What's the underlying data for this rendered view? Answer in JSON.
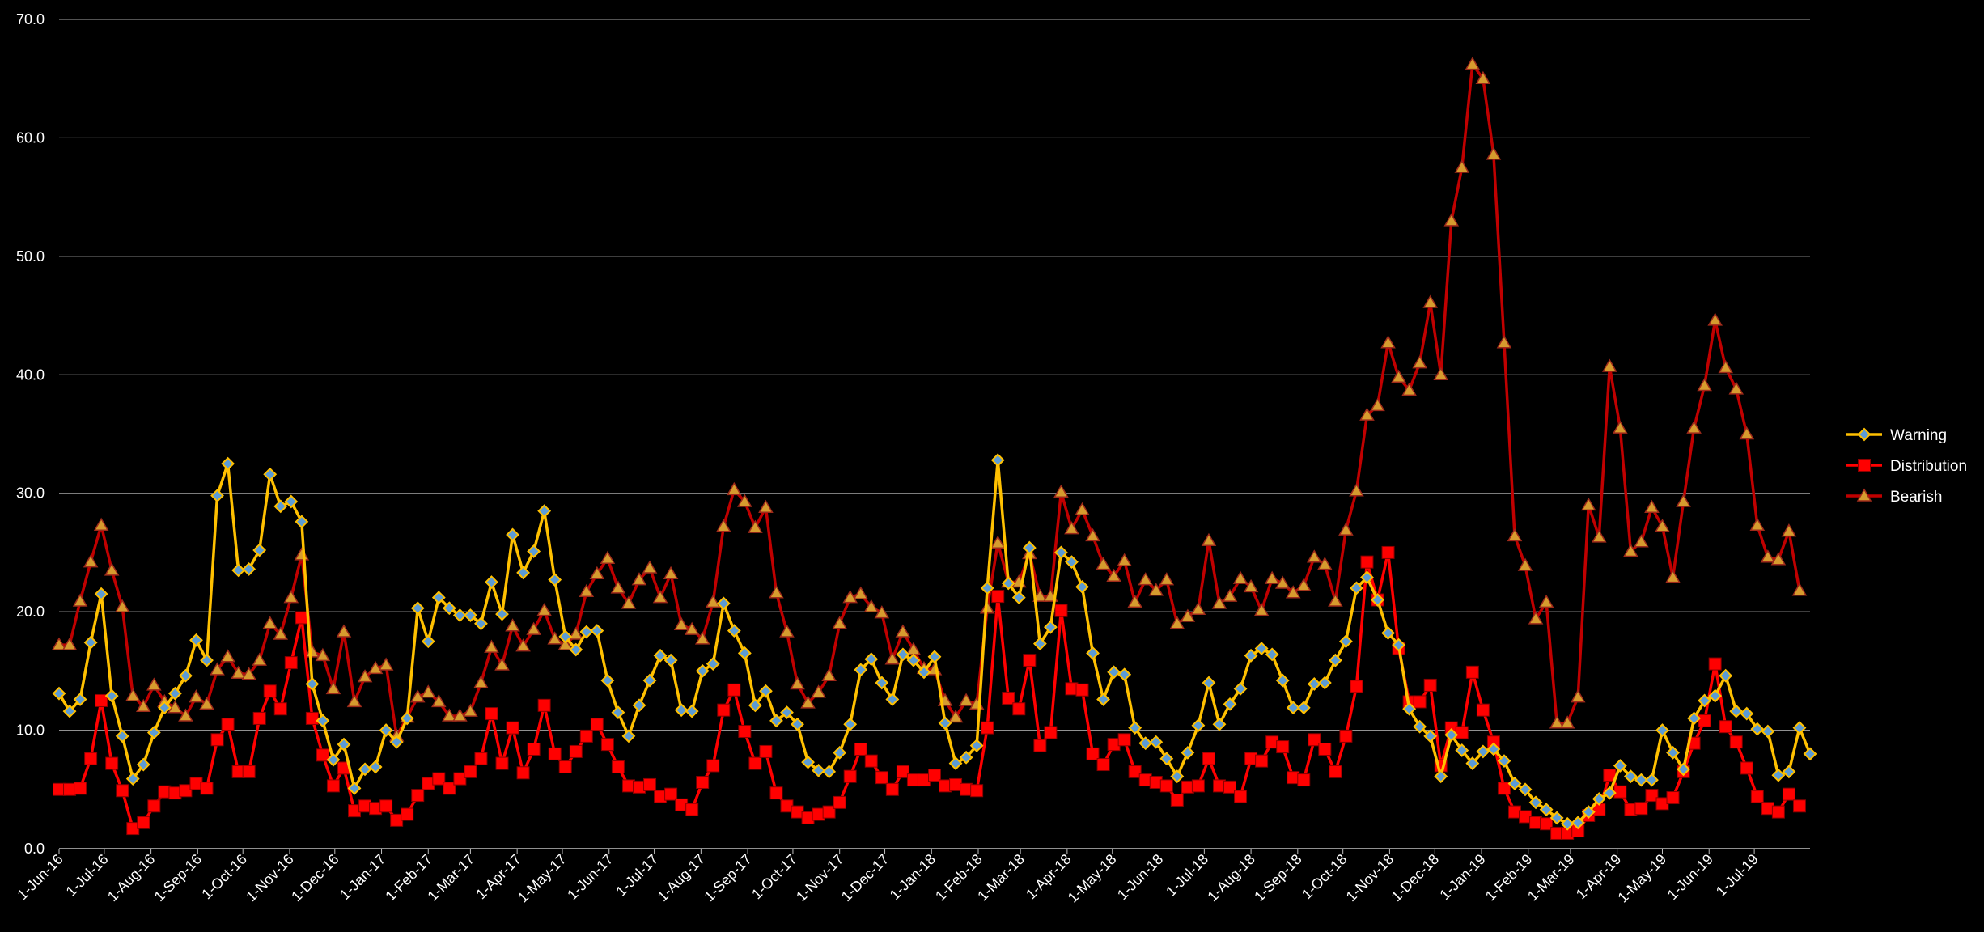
{
  "chart_data": {
    "type": "line",
    "title": "",
    "xlabel": "",
    "ylabel": "",
    "ylim": [
      0,
      70
    ],
    "y_ticks": [
      "0.0",
      "10.0",
      "20.0",
      "30.0",
      "40.0",
      "50.0",
      "60.0",
      "70.0"
    ],
    "grid": "horizontal",
    "legend_position": "right",
    "x_tick_labels": [
      "1-Jun-16",
      "1-Jul-16",
      "1-Aug-16",
      "1-Sep-16",
      "1-Oct-16",
      "1-Nov-16",
      "1-Dec-16",
      "1-Jan-17",
      "1-Feb-17",
      "1-Mar-17",
      "1-Apr-17",
      "1-May-17",
      "1-Jun-17",
      "1-Jul-17",
      "1-Aug-17",
      "1-Sep-17",
      "1-Oct-17",
      "1-Nov-17",
      "1-Dec-17",
      "1-Jan-18",
      "1-Feb-18",
      "1-Mar-18",
      "1-Apr-18",
      "1-May-18",
      "1-Jun-18",
      "1-Jul-18",
      "1-Aug-18",
      "1-Sep-18",
      "1-Oct-18",
      "1-Nov-18",
      "1-Dec-18",
      "1-Jan-19",
      "1-Feb-19",
      "1-Mar-19",
      "1-Apr-19",
      "1-May-19",
      "1-Jun-19",
      "1-Jul-19"
    ],
    "series": [
      {
        "name": "Warning",
        "color": "#FFC000",
        "marker": "diamond",
        "values": [
          13.1,
          11.6,
          12.6,
          17.4,
          21.5,
          12.9,
          9.5,
          5.9,
          7.1,
          9.8,
          11.9,
          13.1,
          14.6,
          17.6,
          15.9,
          29.8,
          32.5,
          23.5,
          23.6,
          25.2,
          31.6,
          28.9,
          29.3,
          27.6,
          13.9,
          10.8,
          7.5,
          8.8,
          5.1,
          6.7,
          6.9,
          10.0,
          9.0,
          11.0,
          20.3,
          17.5,
          21.2,
          20.3,
          19.7,
          19.7,
          19.0,
          22.5,
          19.8,
          26.5,
          23.3,
          25.1,
          28.5,
          22.7,
          17.9,
          16.8,
          18.3,
          18.4,
          14.2,
          11.5,
          9.5,
          12.1,
          14.2,
          16.3,
          15.9,
          11.7,
          11.6,
          15.0,
          15.6,
          20.7,
          18.4,
          16.5,
          12.1,
          13.3,
          10.8,
          11.5,
          10.5,
          7.3,
          6.6,
          6.5,
          8.1,
          10.5,
          15.1,
          16.0,
          14.0,
          12.6,
          16.4,
          15.9,
          14.9,
          16.2,
          10.6,
          7.2,
          7.7,
          8.7,
          22.0,
          32.8,
          22.4,
          21.2,
          25.4,
          17.3,
          18.7,
          25.0,
          24.2,
          22.1,
          16.5,
          12.6,
          14.9,
          14.7,
          10.2,
          8.9,
          9.0,
          7.6,
          6.1,
          8.1,
          10.4,
          14.0,
          10.5,
          12.2,
          13.5,
          16.3,
          16.9,
          16.4,
          14.2,
          11.9,
          11.9,
          13.9,
          14.0,
          15.9,
          17.5,
          22.0,
          22.9,
          21.0,
          18.2,
          17.2,
          11.8,
          10.3,
          9.5,
          6.1,
          9.6,
          8.3,
          7.2,
          8.2,
          8.4,
          7.4,
          5.5,
          5.0,
          3.9,
          3.3,
          2.6,
          2.1,
          2.2,
          3.1,
          4.2,
          4.7,
          7.0,
          6.1,
          5.8,
          5.8,
          10.0,
          8.1,
          6.7,
          11.0,
          12.5,
          12.9,
          14.6,
          11.6,
          11.4,
          10.1,
          9.9,
          6.2,
          6.5,
          10.2,
          8.0
        ]
      },
      {
        "name": "Distribution",
        "color": "#FF0000",
        "marker": "square",
        "values": [
          5.0,
          5.0,
          5.1,
          7.6,
          12.5,
          7.2,
          4.9,
          1.7,
          2.2,
          3.6,
          4.8,
          4.7,
          4.9,
          5.5,
          5.1,
          9.2,
          10.5,
          6.5,
          6.5,
          11.0,
          13.3,
          11.8,
          15.7,
          19.5,
          11.0,
          7.9,
          5.3,
          6.8,
          3.2,
          3.6,
          3.4,
          3.6,
          2.4,
          2.9,
          4.5,
          5.5,
          5.9,
          5.1,
          5.9,
          6.5,
          7.6,
          11.4,
          7.2,
          10.2,
          6.4,
          8.4,
          12.1,
          8.0,
          6.9,
          8.2,
          9.5,
          10.5,
          8.8,
          6.9,
          5.3,
          5.2,
          5.4,
          4.4,
          4.6,
          3.7,
          3.3,
          5.6,
          7.0,
          11.7,
          13.4,
          9.9,
          7.2,
          8.2,
          4.7,
          3.6,
          3.1,
          2.6,
          2.9,
          3.1,
          3.9,
          6.1,
          8.4,
          7.4,
          6.0,
          5.0,
          6.5,
          5.8,
          5.8,
          6.2,
          5.3,
          5.4,
          5.0,
          4.9,
          10.2,
          21.3,
          12.7,
          11.8,
          15.9,
          8.7,
          9.8,
          20.1,
          13.5,
          13.4,
          8.0,
          7.1,
          8.8,
          9.2,
          6.5,
          5.8,
          5.6,
          5.3,
          4.1,
          5.2,
          5.3,
          7.6,
          5.3,
          5.2,
          4.4,
          7.6,
          7.4,
          9.0,
          8.6,
          6.0,
          5.8,
          9.2,
          8.4,
          6.5,
          9.5,
          13.7,
          24.2,
          21.0,
          25.0,
          16.9,
          12.4,
          12.4,
          13.8,
          7.0,
          10.2,
          9.8,
          14.9,
          11.7,
          9.0,
          5.1,
          3.1,
          2.7,
          2.2,
          2.1,
          1.3,
          1.3,
          1.5,
          2.8,
          3.3,
          6.2,
          4.8,
          3.3,
          3.4,
          4.5,
          3.8,
          4.3,
          6.5,
          8.9,
          10.8,
          15.6,
          10.3,
          9.0,
          6.8,
          4.4,
          3.4,
          3.1,
          4.6,
          3.6
        ]
      },
      {
        "name": "Bearish",
        "color": "#C00000",
        "marker": "triangle",
        "values": [
          17.2,
          17.2,
          20.9,
          24.2,
          27.3,
          23.5,
          20.4,
          12.9,
          12.0,
          13.8,
          12.4,
          11.9,
          11.2,
          12.8,
          12.2,
          15.1,
          16.2,
          14.8,
          14.7,
          15.9,
          19.0,
          18.1,
          21.2,
          24.8,
          16.6,
          16.3,
          13.5,
          18.3,
          12.4,
          14.5,
          15.2,
          15.5,
          9.5,
          11.1,
          12.8,
          13.2,
          12.4,
          11.2,
          11.2,
          11.6,
          14.0,
          17.0,
          15.5,
          18.8,
          17.1,
          18.5,
          20.1,
          17.7,
          17.2,
          18.1,
          21.7,
          23.2,
          24.5,
          22.0,
          20.7,
          22.7,
          23.7,
          21.2,
          23.2,
          18.9,
          18.5,
          17.7,
          20.8,
          27.2,
          30.3,
          29.3,
          27.1,
          28.8,
          21.6,
          18.3,
          13.9,
          12.3,
          13.2,
          14.6,
          19.0,
          21.2,
          21.5,
          20.4,
          19.9,
          16.0,
          18.3,
          16.8,
          15.2,
          15.1,
          12.5,
          11.1,
          12.5,
          12.2,
          20.3,
          25.8,
          22.5,
          22.5,
          24.9,
          21.3,
          21.3,
          30.1,
          27.0,
          28.6,
          26.4,
          24.0,
          23.0,
          24.3,
          20.8,
          22.7,
          21.8,
          22.7,
          19.0,
          19.6,
          20.2,
          26.0,
          20.7,
          21.3,
          22.8,
          22.1,
          20.1,
          22.8,
          22.4,
          21.6,
          22.2,
          24.6,
          24.0,
          20.9,
          26.9,
          30.2,
          36.6,
          37.4,
          42.7,
          39.8,
          38.7,
          41.0,
          46.1,
          40.0,
          53.0,
          57.5,
          66.2,
          65.0,
          58.6,
          42.7,
          26.4,
          23.9,
          19.4,
          20.8,
          10.6,
          10.6,
          12.8,
          29.0,
          26.3,
          40.7,
          35.5,
          25.1,
          25.9,
          28.8,
          27.2,
          22.9,
          29.3,
          35.5,
          39.1,
          44.6,
          40.6,
          38.8,
          35.0,
          27.3,
          24.6,
          24.4,
          26.8,
          21.8
        ]
      }
    ]
  }
}
